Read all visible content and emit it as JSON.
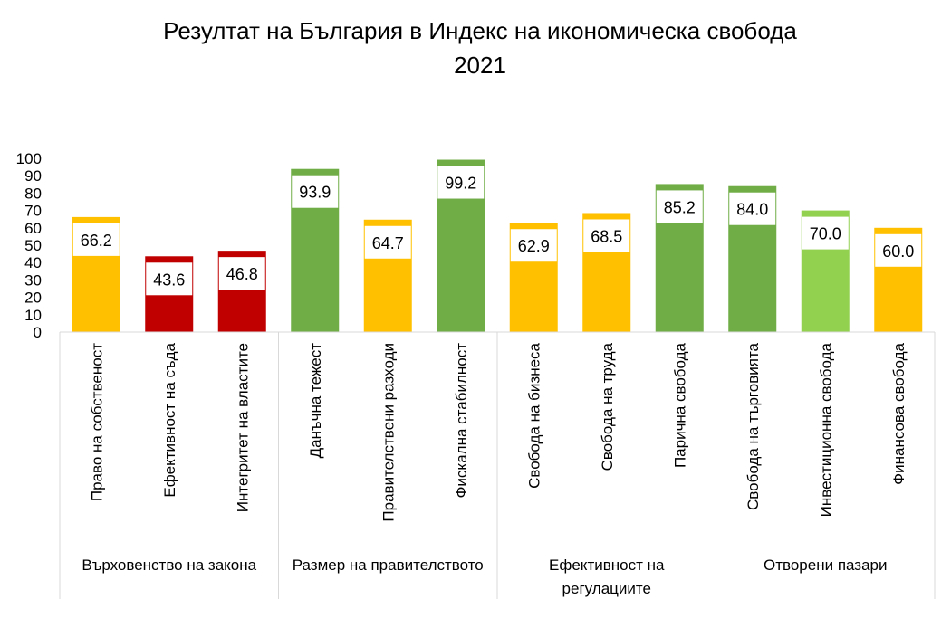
{
  "chart_data": {
    "type": "bar",
    "title_line1": "Резултат на България в Индекс на икономическа свобода",
    "title_line2": "2021",
    "ylim": [
      0,
      100
    ],
    "yticks": [
      "0",
      "10",
      "20",
      "30",
      "40",
      "50",
      "60",
      "70",
      "80",
      "90",
      "100"
    ],
    "grid": false,
    "legend": "none",
    "categories": [
      "Право на собственост",
      "Ефективност на съда",
      "Интегритет на властите",
      "Данъчна тежест",
      "Правителствени разходи",
      "Фискална стабилност",
      "Свобода на бизнеса",
      "Свобода на труда",
      "Парична свобода",
      "Свобода на търговията",
      "Инвестиционна свобода",
      "Финансова свобода"
    ],
    "values": [
      66.2,
      43.6,
      46.8,
      93.9,
      64.7,
      99.2,
      62.9,
      68.5,
      85.2,
      84.0,
      70.0,
      60.0
    ],
    "value_labels": [
      "66.2",
      "43.6",
      "46.8",
      "93.9",
      "64.7",
      "99.2",
      "62.9",
      "68.5",
      "85.2",
      "84.0",
      "70.0",
      "60.0"
    ],
    "bar_colors": [
      "#FFC000",
      "#C00000",
      "#C00000",
      "#70AD47",
      "#FFC000",
      "#70AD47",
      "#FFC000",
      "#FFC000",
      "#70AD47",
      "#70AD47",
      "#92D050",
      "#FFC000"
    ],
    "groups": [
      {
        "label_lines": [
          "Върховенство на закона"
        ],
        "count": 3
      },
      {
        "label_lines": [
          "Размер на правителството"
        ],
        "count": 3
      },
      {
        "label_lines": [
          "Ефективност на",
          "регулациите"
        ],
        "count": 3
      },
      {
        "label_lines": [
          "Отворени пазари"
        ],
        "count": 3
      }
    ]
  }
}
